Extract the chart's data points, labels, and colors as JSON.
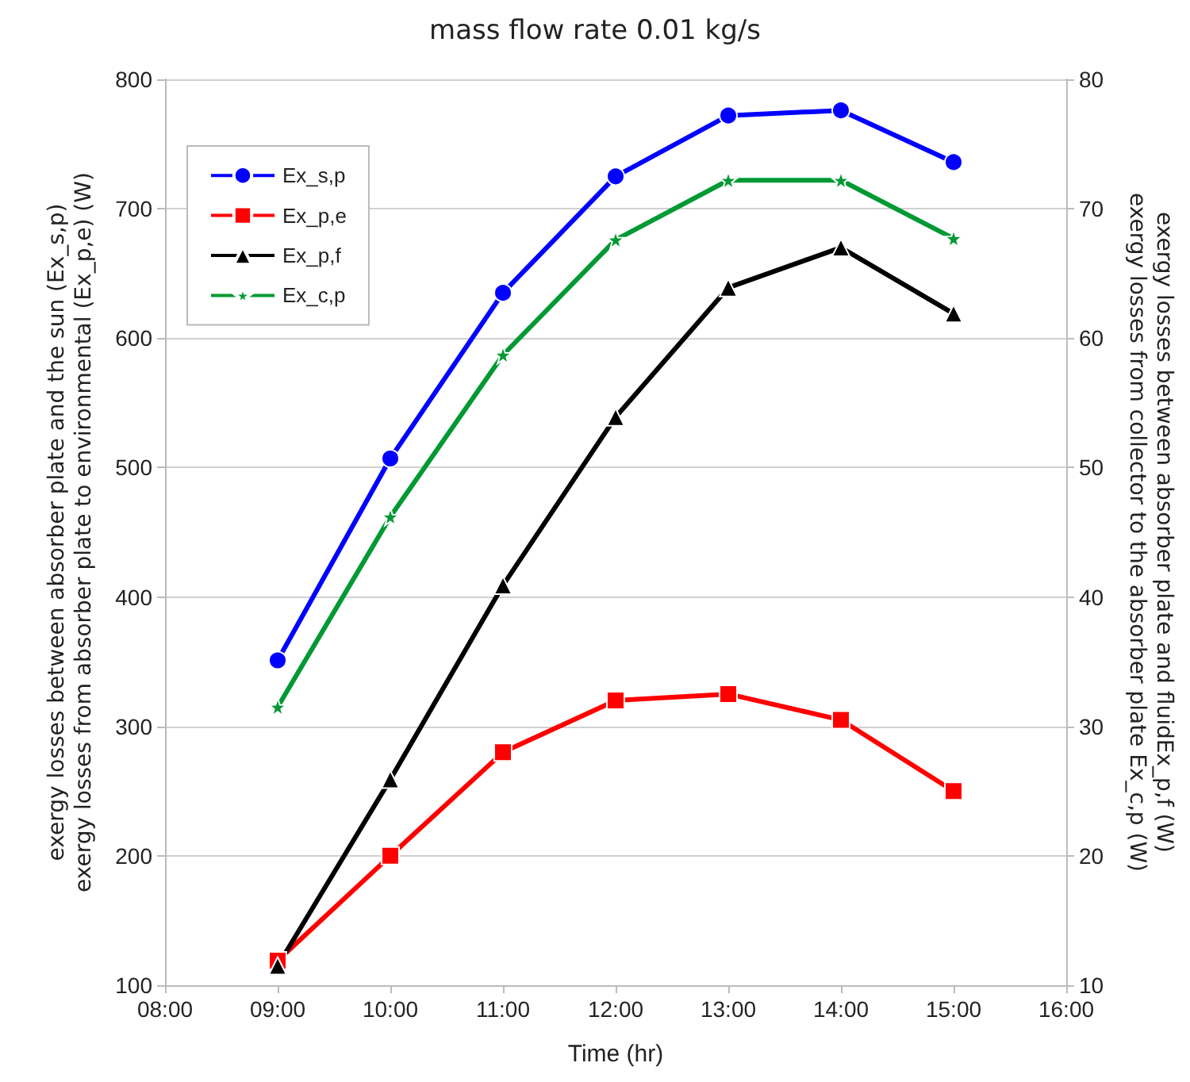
{
  "chart_data": {
    "type": "line",
    "title": "mass flow rate 0.01 kg/s",
    "xlabel": "Time (hr)",
    "ylabel": "exergy losses between absorber plate and the sun (Ex_s,p)\nexergy losses from absorber plate to environmental (Ex_p,e) (W)",
    "y2label": "exergy losses between absorber plate and fluidEx_p,f (W)\nexergy losses from collector to the absorber plate Ex_c,p (W)",
    "x": [
      9,
      10,
      11,
      12,
      13,
      14,
      15
    ],
    "xlim": [
      8,
      16
    ],
    "xticks": [
      {
        "value": 8,
        "label": "08:00"
      },
      {
        "value": 9,
        "label": "09:00"
      },
      {
        "value": 10,
        "label": "10:00"
      },
      {
        "value": 11,
        "label": "11:00"
      },
      {
        "value": 12,
        "label": "12:00"
      },
      {
        "value": 13,
        "label": "13:00"
      },
      {
        "value": 14,
        "label": "14:00"
      },
      {
        "value": 15,
        "label": "15:00"
      },
      {
        "value": 16,
        "label": "16:00"
      }
    ],
    "ylim": [
      100,
      800
    ],
    "yticks": [
      100,
      200,
      300,
      400,
      500,
      600,
      700,
      800
    ],
    "y2lim": [
      10,
      80
    ],
    "y2ticks": [
      10,
      20,
      30,
      40,
      50,
      60,
      70,
      80
    ],
    "grid": "y",
    "legend": "top left",
    "line_style": "solid",
    "series": [
      {
        "name": "Ex_s,p",
        "color": "#0000ff",
        "marker": "circle",
        "values": [
          351,
          507,
          635,
          725,
          772,
          776,
          736
        ]
      },
      {
        "name": "Ex_p,e",
        "color": "#ff0000",
        "marker": "square",
        "values": [
          119,
          200,
          280,
          320,
          325,
          305,
          250
        ]
      },
      {
        "name": "Ex_p,f",
        "color": "#000000",
        "marker": "triangle",
        "axis": "y2",
        "values": [
          11.5,
          25.9,
          40.9,
          53.9,
          63.9,
          67.0,
          61.9
        ]
      },
      {
        "name": "Ex_c,p",
        "color": "#009933",
        "marker": "star",
        "axis": "y2",
        "values": [
          31.5,
          46.2,
          58.7,
          67.6,
          72.2,
          72.2,
          67.7
        ]
      }
    ]
  }
}
